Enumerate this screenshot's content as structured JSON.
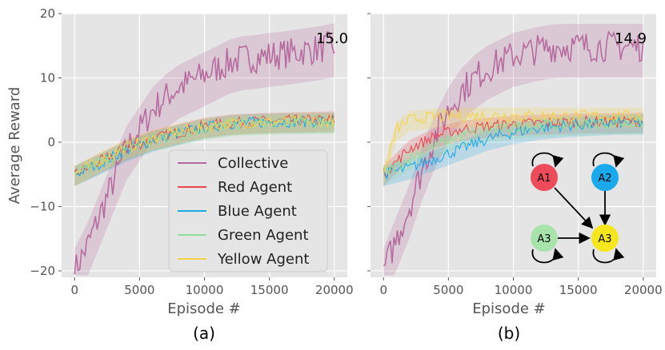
{
  "chart_data": [
    {
      "panel": "(a)",
      "type": "line",
      "xlabel": "Episode #",
      "ylabel": "Average Reward",
      "xlim": [
        -1000,
        21000
      ],
      "ylim": [
        -21,
        20
      ],
      "xticks": [
        0,
        5000,
        10000,
        15000,
        20000
      ],
      "yticks": [
        -20,
        -10,
        0,
        10,
        20
      ],
      "grid": true,
      "legend_position": "lower-right",
      "final_label": "15.0",
      "series": [
        {
          "name": "Collective",
          "color": "#b5679c",
          "x": [
            0,
            1000,
            2000,
            3000,
            4000,
            5000,
            6000,
            7000,
            8000,
            9000,
            10000,
            11000,
            12000,
            13000,
            14000,
            15000,
            16000,
            17000,
            18000,
            19000,
            20000
          ],
          "y": [
            -20,
            -16,
            -11,
            -6,
            -1,
            2,
            5,
            7,
            8.5,
            9.5,
            10.5,
            11.5,
            12.5,
            13,
            13.2,
            13.5,
            13.7,
            14,
            14.3,
            14.6,
            15
          ]
        },
        {
          "name": "Red Agent",
          "color": "#e8464f",
          "x": [
            0,
            2000,
            4000,
            6000,
            8000,
            10000,
            12000,
            14000,
            16000,
            18000,
            20000
          ],
          "y": [
            -5,
            -3,
            -1,
            0.5,
            1.5,
            2.5,
            3,
            3.2,
            3.3,
            3.4,
            3.5
          ]
        },
        {
          "name": "Blue Agent",
          "color": "#1ea7e8",
          "x": [
            0,
            2000,
            4000,
            6000,
            8000,
            10000,
            12000,
            14000,
            16000,
            18000,
            20000
          ],
          "y": [
            -5,
            -3.2,
            -1.2,
            0.3,
            1.4,
            2.3,
            2.9,
            3.1,
            3.2,
            3.2,
            3.3
          ]
        },
        {
          "name": "Green Agent",
          "color": "#8ce09c",
          "x": [
            0,
            2000,
            4000,
            6000,
            8000,
            10000,
            12000,
            14000,
            16000,
            18000,
            20000
          ],
          "y": [
            -5,
            -3,
            -1,
            0.4,
            1.3,
            2.2,
            2.7,
            2.9,
            3,
            3.1,
            3.1
          ]
        },
        {
          "name": "Yellow Agent",
          "color": "#f4d24a",
          "x": [
            0,
            2000,
            4000,
            6000,
            8000,
            10000,
            12000,
            14000,
            16000,
            18000,
            20000
          ],
          "y": [
            -5,
            -2.8,
            -0.8,
            0.6,
            1.6,
            2.4,
            2.9,
            3.1,
            3.2,
            3.3,
            3.3
          ]
        }
      ],
      "legend": [
        "Collective",
        "Red Agent",
        "Blue Agent",
        "Green Agent",
        "Yellow Agent"
      ]
    },
    {
      "panel": "(b)",
      "type": "line",
      "xlabel": "Episode #",
      "ylabel": "",
      "xlim": [
        -1000,
        21000
      ],
      "ylim": [
        -21,
        20
      ],
      "xticks": [
        0,
        5000,
        10000,
        15000,
        20000
      ],
      "yticks": [
        -20,
        -10,
        0,
        10,
        20
      ],
      "grid": true,
      "final_label": "14.9",
      "series": [
        {
          "name": "Collective",
          "color": "#b5679c",
          "x": [
            0,
            1000,
            2000,
            3000,
            4000,
            5000,
            6000,
            7000,
            8000,
            9000,
            10000,
            11000,
            12000,
            13000,
            14000,
            15000,
            16000,
            17000,
            18000,
            19000,
            20000
          ],
          "y": [
            -20,
            -15,
            -10,
            -4,
            1,
            5,
            8,
            10,
            11.5,
            12.5,
            13.5,
            14,
            14.5,
            14.8,
            14.9,
            14.9,
            14.9,
            14.9,
            14.9,
            14.9,
            14.9
          ]
        },
        {
          "name": "Red Agent",
          "color": "#e8464f",
          "x": [
            0,
            2000,
            4000,
            6000,
            8000,
            10000,
            12000,
            14000,
            16000,
            18000,
            20000
          ],
          "y": [
            -5,
            -1,
            1,
            2,
            2.5,
            2.8,
            3,
            3.1,
            3.2,
            3.2,
            3.3
          ]
        },
        {
          "name": "Blue Agent",
          "color": "#1ea7e8",
          "x": [
            0,
            2000,
            4000,
            6000,
            8000,
            10000,
            12000,
            14000,
            16000,
            18000,
            20000
          ],
          "y": [
            -5,
            -4,
            -2.5,
            -1,
            0.5,
            1.5,
            2.2,
            2.6,
            2.8,
            3,
            3
          ]
        },
        {
          "name": "Green Agent",
          "color": "#8ce09c",
          "x": [
            0,
            2000,
            4000,
            6000,
            8000,
            10000,
            12000,
            14000,
            16000,
            18000,
            20000
          ],
          "y": [
            -5,
            -2.5,
            -0.5,
            1,
            1.8,
            2.3,
            2.6,
            2.8,
            2.9,
            3,
            3
          ]
        },
        {
          "name": "Yellow Agent",
          "color": "#f4d24a",
          "x": [
            0,
            1000,
            2000,
            4000,
            6000,
            8000,
            10000,
            12000,
            14000,
            16000,
            18000,
            20000
          ],
          "y": [
            -5,
            2,
            3.5,
            4,
            4.1,
            4.1,
            4.1,
            4.1,
            4.1,
            4.1,
            4.1,
            4.1
          ]
        }
      ],
      "graph": {
        "nodes": [
          {
            "id": "n1",
            "label": "A1",
            "color": "#ee4b5a"
          },
          {
            "id": "n2",
            "label": "A2",
            "color": "#19a9ec"
          },
          {
            "id": "n3",
            "label": "A3",
            "color": "#a6e4ac"
          },
          {
            "id": "n4",
            "label": "A3",
            "color": "#f5e71c"
          }
        ],
        "edges": [
          [
            "n1",
            "n4"
          ],
          [
            "n2",
            "n4"
          ],
          [
            "n3",
            "n4"
          ]
        ],
        "self_loops": [
          "n1",
          "n2",
          "n3",
          "n4"
        ]
      }
    }
  ]
}
